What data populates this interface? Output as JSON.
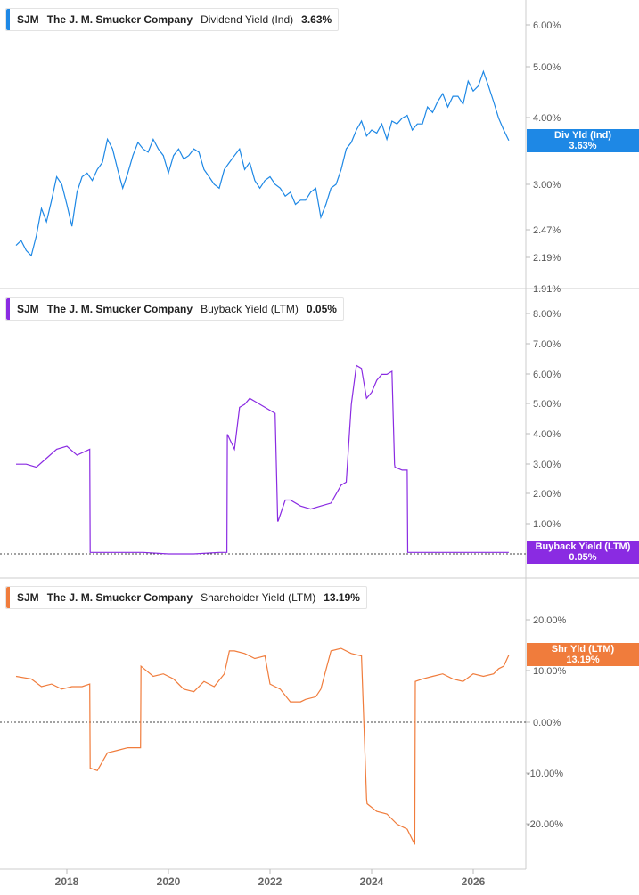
{
  "colors": {
    "dividend": "#1e88e5",
    "buyback": "#8a2be2",
    "shareholder": "#f07c3c",
    "grid": "#dddddd",
    "axis_text": "#555555",
    "zero_line": "#444444"
  },
  "x_ticks": [
    "2018",
    "2020",
    "2022",
    "2024",
    "2026"
  ],
  "panels": [
    {
      "ticker": "SJM",
      "company": "The J. M. Smucker Company",
      "metric": "Dividend Yield (Ind)",
      "value": "3.63%",
      "tag_line1": "Div Yld (Ind)",
      "tag_line2": "3.63%"
    },
    {
      "ticker": "SJM",
      "company": "The J. M. Smucker Company",
      "metric": "Buyback Yield (LTM)",
      "value": "0.05%",
      "tag_line1": "Buyback Yield (LTM)",
      "tag_line2": "0.05%"
    },
    {
      "ticker": "SJM",
      "company": "The J. M. Smucker Company",
      "metric": "Shareholder Yield (LTM)",
      "value": "13.19%",
      "tag_line1": "Shr Yld (LTM)",
      "tag_line2": "13.19%"
    }
  ],
  "chart_data": [
    {
      "type": "line",
      "series": [
        {
          "name": "Dividend Yield (Ind)",
          "x": [
            2017.0,
            2017.1,
            2017.2,
            2017.3,
            2017.4,
            2017.5,
            2017.6,
            2017.7,
            2017.8,
            2017.9,
            2018.0,
            2018.1,
            2018.2,
            2018.3,
            2018.4,
            2018.5,
            2018.6,
            2018.7,
            2018.8,
            2018.9,
            2019.0,
            2019.1,
            2019.2,
            2019.3,
            2019.4,
            2019.5,
            2019.6,
            2019.7,
            2019.8,
            2019.9,
            2020.0,
            2020.1,
            2020.2,
            2020.3,
            2020.4,
            2020.5,
            2020.6,
            2020.7,
            2020.8,
            2020.9,
            2021.0,
            2021.1,
            2021.2,
            2021.3,
            2021.4,
            2021.5,
            2021.6,
            2021.7,
            2021.8,
            2021.9,
            2022.0,
            2022.1,
            2022.2,
            2022.3,
            2022.4,
            2022.5,
            2022.6,
            2022.7,
            2022.8,
            2022.9,
            2023.0,
            2023.1,
            2023.2,
            2023.3,
            2023.4,
            2023.5,
            2023.6,
            2023.7,
            2023.8,
            2023.9,
            2024.0,
            2024.1,
            2024.2,
            2024.3,
            2024.4,
            2024.5,
            2024.6,
            2024.7,
            2024.8,
            2024.9,
            2025.0,
            2025.1,
            2025.2,
            2025.3,
            2025.4,
            2025.5,
            2025.6,
            2025.7,
            2025.8,
            2025.9,
            2026.0,
            2026.1,
            2026.2,
            2026.3,
            2026.4,
            2026.5,
            2026.6,
            2026.7
          ],
          "values": [
            2.3,
            2.35,
            2.25,
            2.2,
            2.4,
            2.7,
            2.55,
            2.8,
            3.1,
            3.0,
            2.75,
            2.5,
            2.9,
            3.1,
            3.15,
            3.05,
            3.2,
            3.3,
            3.65,
            3.5,
            3.2,
            2.95,
            3.15,
            3.4,
            3.6,
            3.5,
            3.45,
            3.65,
            3.5,
            3.4,
            3.15,
            3.4,
            3.5,
            3.35,
            3.4,
            3.5,
            3.45,
            3.2,
            3.1,
            3.0,
            2.95,
            3.2,
            3.3,
            3.4,
            3.5,
            3.2,
            3.3,
            3.05,
            2.95,
            3.05,
            3.1,
            3.0,
            2.95,
            2.85,
            2.9,
            2.75,
            2.8,
            2.8,
            2.9,
            2.95,
            2.6,
            2.75,
            2.95,
            3.0,
            3.2,
            3.5,
            3.6,
            3.8,
            3.95,
            3.7,
            3.8,
            3.75,
            3.9,
            3.65,
            3.95,
            3.9,
            4.0,
            4.05,
            3.8,
            3.9,
            3.9,
            4.2,
            4.1,
            4.3,
            4.45,
            4.2,
            4.4,
            4.4,
            4.25,
            4.7,
            4.5,
            4.6,
            4.9,
            4.6,
            4.3,
            4.0,
            3.8,
            3.63
          ]
        }
      ],
      "yticks": [
        "1.91%",
        "2.19%",
        "2.47%",
        "3.00%",
        "4.00%",
        "5.00%",
        "6.00%"
      ],
      "ylim": [
        1.91,
        6.5
      ],
      "yscale": "log",
      "grid": false
    },
    {
      "type": "line",
      "series": [
        {
          "name": "Buyback Yield (LTM)",
          "x": [
            2017.0,
            2017.2,
            2017.4,
            2017.6,
            2017.8,
            2018.0,
            2018.2,
            2018.45,
            2018.46,
            2019.0,
            2019.5,
            2020.0,
            2020.5,
            2021.0,
            2021.15,
            2021.16,
            2021.3,
            2021.4,
            2021.5,
            2021.6,
            2021.7,
            2021.9,
            2022.1,
            2022.15,
            2022.16,
            2022.3,
            2022.4,
            2022.6,
            2022.8,
            2023.0,
            2023.2,
            2023.4,
            2023.5,
            2023.6,
            2023.7,
            2023.8,
            2023.9,
            2024.0,
            2024.1,
            2024.2,
            2024.3,
            2024.4,
            2024.45,
            2024.46,
            2024.6,
            2024.7,
            2024.71,
            2025.0,
            2025.5,
            2026.0,
            2026.5,
            2026.7
          ],
          "values": [
            3.0,
            3.0,
            2.9,
            3.2,
            3.5,
            3.6,
            3.3,
            3.5,
            0.05,
            0.05,
            0.05,
            0.0,
            0.0,
            0.05,
            0.05,
            4.0,
            3.5,
            4.9,
            5.0,
            5.2,
            5.1,
            4.9,
            4.7,
            1.1,
            1.1,
            1.8,
            1.8,
            1.6,
            1.5,
            1.6,
            1.7,
            2.3,
            2.4,
            5.0,
            6.3,
            6.2,
            5.2,
            5.4,
            5.8,
            6.0,
            6.0,
            6.1,
            3.0,
            2.9,
            2.8,
            2.8,
            0.05,
            0.05,
            0.05,
            0.05,
            0.05,
            0.05
          ]
        }
      ],
      "yticks": [
        "1.00%",
        "2.00%",
        "3.00%",
        "4.00%",
        "5.00%",
        "6.00%",
        "7.00%",
        "8.00%"
      ],
      "ylim": [
        0,
        8.3
      ],
      "zero_line": true
    },
    {
      "type": "line",
      "series": [
        {
          "name": "Shareholder Yield (LTM)",
          "x": [
            2017.0,
            2017.3,
            2017.5,
            2017.7,
            2017.9,
            2018.1,
            2018.3,
            2018.45,
            2018.46,
            2018.6,
            2018.8,
            2019.0,
            2019.2,
            2019.45,
            2019.46,
            2019.7,
            2019.9,
            2020.1,
            2020.3,
            2020.5,
            2020.7,
            2020.9,
            2021.1,
            2021.2,
            2021.3,
            2021.5,
            2021.7,
            2021.9,
            2022.0,
            2022.1,
            2022.2,
            2022.4,
            2022.6,
            2022.7,
            2022.9,
            2023.0,
            2023.2,
            2023.4,
            2023.6,
            2023.8,
            2023.9,
            2023.91,
            2024.1,
            2024.3,
            2024.5,
            2024.7,
            2024.85,
            2024.86,
            2025.0,
            2025.2,
            2025.4,
            2025.6,
            2025.8,
            2026.0,
            2026.2,
            2026.4,
            2026.5,
            2026.6,
            2026.7
          ],
          "values": [
            9.0,
            8.5,
            7.0,
            7.5,
            6.5,
            7.0,
            7.0,
            7.5,
            -9.0,
            -9.5,
            -6.0,
            -5.5,
            -5.0,
            -5.0,
            11.0,
            9.0,
            9.5,
            8.5,
            6.5,
            6.0,
            8.0,
            7.0,
            9.5,
            14.0,
            14.0,
            13.5,
            12.5,
            13.0,
            7.5,
            7.0,
            6.5,
            4.0,
            4.0,
            4.5,
            5.0,
            6.5,
            14.0,
            14.5,
            13.5,
            13.0,
            -15.0,
            -16.0,
            -17.5,
            -18.0,
            -20.0,
            -21.0,
            -24.0,
            8.0,
            8.5,
            9.0,
            9.5,
            8.5,
            8.0,
            9.5,
            9.0,
            9.5,
            10.5,
            11.0,
            13.19
          ]
        }
      ],
      "yticks": [
        "-20.00%",
        "-10.00%",
        "0.00%",
        "10.00%",
        "20.00%"
      ],
      "ylim": [
        -28,
        24
      ],
      "zero_line": true
    }
  ]
}
